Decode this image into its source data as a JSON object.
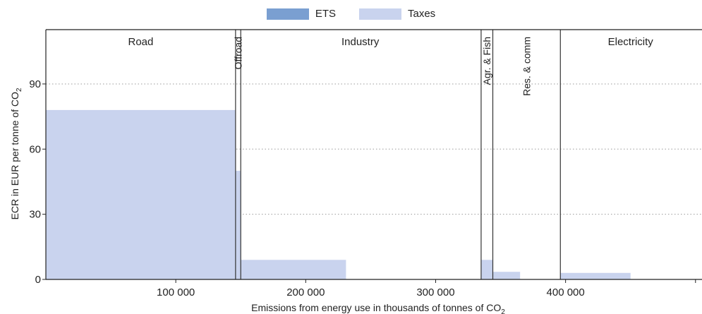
{
  "chart_data": {
    "type": "bar",
    "variant": "variable-width stacked bar (marimekko)",
    "xlabel": "Emissions from energy use in thousands of tonnes of CO",
    "xlabel_sub": "2",
    "ylabel": "ECR in EUR per tonne of CO",
    "ylabel_sub": "2",
    "xlim": [
      0,
      505000
    ],
    "ylim": [
      0,
      115
    ],
    "x_ticks": [
      {
        "value": 100000,
        "label": "100 000"
      },
      {
        "value": 200000,
        "label": "200 000"
      },
      {
        "value": 300000,
        "label": "300 000"
      },
      {
        "value": 400000,
        "label": "400 000"
      }
    ],
    "y_ticks": [
      {
        "value": 0,
        "label": "0"
      },
      {
        "value": 30,
        "label": "30"
      },
      {
        "value": 60,
        "label": "60"
      },
      {
        "value": 90,
        "label": "90"
      }
    ],
    "grid": "horizontal dotted",
    "legend_position": "top-center",
    "legend": [
      {
        "name": "ETS",
        "color": "#7a9fd1"
      },
      {
        "name": "Taxes",
        "color": "#c9d3ee"
      }
    ],
    "sector_boundaries": [
      146000,
      150000,
      335000,
      344000,
      396000
    ],
    "sector_labels": [
      {
        "label": "Road",
        "x": 73000,
        "rotated": false
      },
      {
        "label": "Offroad",
        "x": 148000,
        "rotated": true
      },
      {
        "label": "Industry",
        "x": 242000,
        "rotated": false
      },
      {
        "label": "Agr. & Fish",
        "x": 339500,
        "rotated": true
      },
      {
        "label": "Res. & comm",
        "x": 370000,
        "rotated": true
      },
      {
        "label": "Electricity",
        "x": 450000,
        "rotated": false
      }
    ],
    "bars": [
      {
        "sector": "Road",
        "x0": 0,
        "x1": 146000,
        "series": "Taxes",
        "value": 78
      },
      {
        "sector": "Offroad",
        "x0": 146000,
        "x1": 150000,
        "series": "Taxes",
        "value": 50
      },
      {
        "sector": "Industry",
        "x0": 150000,
        "x1": 231000,
        "series": "Taxes",
        "value": 9
      },
      {
        "sector": "Agr. & Fish",
        "x0": 335000,
        "x1": 344000,
        "series": "Taxes",
        "value": 9
      },
      {
        "sector": "Res. & comm",
        "x0": 344000,
        "x1": 365000,
        "series": "Taxes",
        "value": 3.5
      },
      {
        "sector": "Electricity",
        "x0": 396000,
        "x1": 450000,
        "series": "Taxes",
        "value": 3
      }
    ]
  }
}
